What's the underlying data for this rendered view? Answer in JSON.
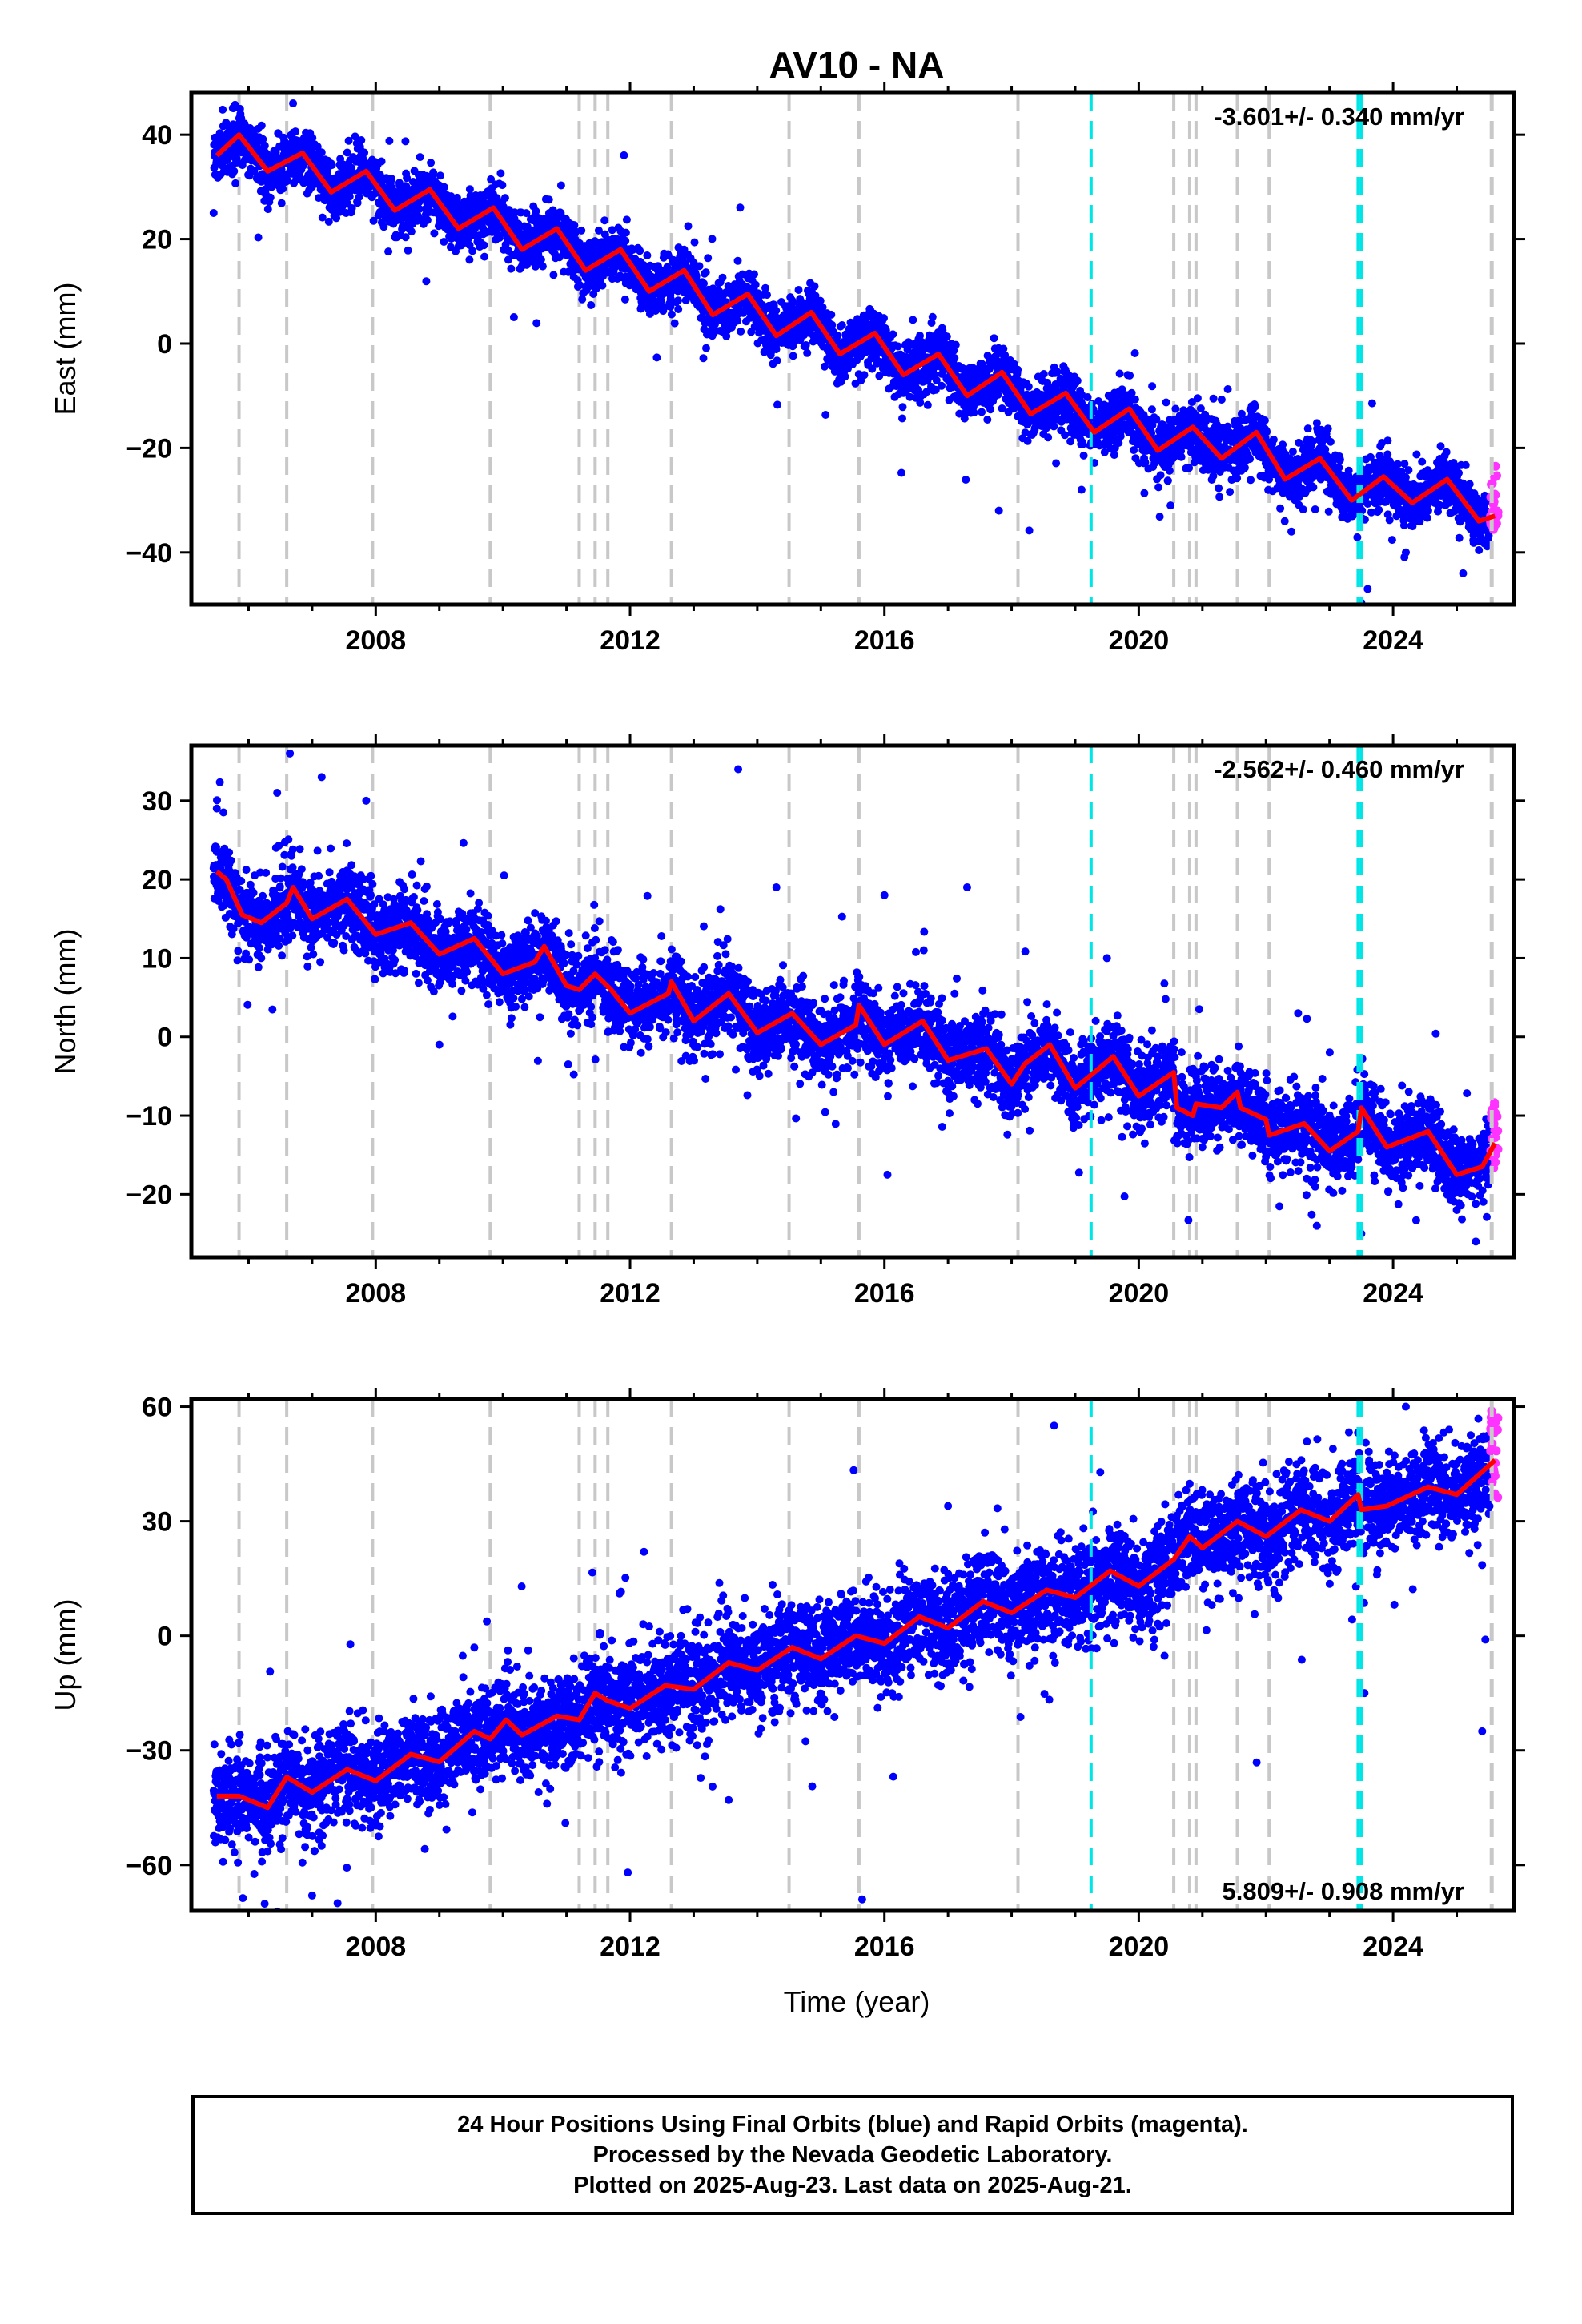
{
  "title": "AV10 - NA",
  "x_axis": {
    "label": "Time (year)",
    "range": [
      2005.1,
      2025.9
    ],
    "ticks": [
      2008,
      2012,
      2016,
      2020,
      2024
    ],
    "tick_labels": [
      "2008",
      "2012",
      "2016",
      "2020",
      "2024"
    ]
  },
  "event_lines": {
    "gray": [
      2005.85,
      2006.6,
      2007.95,
      2009.8,
      2011.2,
      2011.45,
      2011.65,
      2012.65,
      2014.5,
      2015.6,
      2018.1,
      2020.55,
      2020.8,
      2020.9,
      2021.55,
      2022.05,
      2025.55
    ],
    "cyan": [
      2019.25,
      2023.45,
      2023.5
    ],
    "gray_color": "#c8c8c8",
    "cyan_color": "#00e5e5"
  },
  "colors": {
    "final_orbits": "#0000ff",
    "rapid_orbits": "#ff33ff",
    "model": "#ff0000"
  },
  "panels": [
    {
      "key": "east",
      "ylabel": "East (mm)",
      "rate_label": "-3.601+/- 0.340 mm/yr",
      "rate_position": "top-right",
      "ylim": [
        -50,
        48
      ],
      "yticks": [
        40,
        20,
        0,
        -20,
        -40
      ],
      "ytick_labels": [
        "40",
        "20",
        "0",
        "−20",
        "−40"
      ],
      "model": {
        "start_value": 37,
        "rate": -3.601,
        "amplitude": 3.6,
        "noise": 2.6
      },
      "model_points": [
        [
          2005.5,
          36.0
        ],
        [
          2005.85,
          40.0
        ],
        [
          2006.3,
          33.0
        ],
        [
          2006.85,
          36.5
        ],
        [
          2007.3,
          29.0
        ],
        [
          2007.85,
          33.0
        ],
        [
          2008.3,
          25.5
        ],
        [
          2008.85,
          29.5
        ],
        [
          2009.3,
          22.0
        ],
        [
          2009.85,
          26.0
        ],
        [
          2010.3,
          18.0
        ],
        [
          2010.85,
          22.0
        ],
        [
          2011.3,
          14.0
        ],
        [
          2011.85,
          18.0
        ],
        [
          2012.3,
          10.0
        ],
        [
          2012.85,
          14.0
        ],
        [
          2013.3,
          5.5
        ],
        [
          2013.85,
          9.5
        ],
        [
          2014.3,
          1.5
        ],
        [
          2014.85,
          6.0
        ],
        [
          2015.3,
          -2.0
        ],
        [
          2015.85,
          2.0
        ],
        [
          2016.3,
          -6.0
        ],
        [
          2016.85,
          -2.0
        ],
        [
          2017.3,
          -10.0
        ],
        [
          2017.85,
          -5.5
        ],
        [
          2018.3,
          -13.5
        ],
        [
          2018.85,
          -9.5
        ],
        [
          2019.3,
          -17.0
        ],
        [
          2019.85,
          -12.5
        ],
        [
          2020.3,
          -20.5
        ],
        [
          2020.85,
          -16.0
        ],
        [
          2021.3,
          -22.0
        ],
        [
          2021.85,
          -17.0
        ],
        [
          2022.3,
          -26.0
        ],
        [
          2022.85,
          -22.0
        ],
        [
          2023.35,
          -30.0
        ],
        [
          2023.85,
          -25.5
        ],
        [
          2024.3,
          -30.5
        ],
        [
          2024.85,
          -26.0
        ],
        [
          2025.35,
          -34.0
        ],
        [
          2025.6,
          -33.0
        ]
      ],
      "rapid_range": [
        -36,
        -23
      ],
      "outliers": [
        [
          2005.45,
          25
        ],
        [
          2006.7,
          46
        ],
        [
          2007.25,
          35
        ],
        [
          2017.8,
          -32
        ],
        [
          2019.1,
          -28
        ],
        [
          2020.5,
          -31
        ],
        [
          2022.4,
          -36
        ],
        [
          2023.6,
          -47
        ],
        [
          2024.2,
          -40
        ],
        [
          2025.1,
          -44
        ]
      ]
    },
    {
      "key": "north",
      "ylabel": "North (mm)",
      "rate_label": "-2.562+/- 0.460 mm/yr",
      "rate_position": "top-right",
      "ylim": [
        -28,
        37
      ],
      "yticks": [
        30,
        20,
        10,
        0,
        -10,
        -20
      ],
      "ytick_labels": [
        "30",
        "20",
        "10",
        "0",
        "−10",
        "−20"
      ],
      "model": {
        "start_value": 18,
        "rate": -2.562,
        "amplitude": 2.1,
        "noise": 2.4
      },
      "model_points": [
        [
          2005.5,
          21.0
        ],
        [
          2005.65,
          20.0
        ],
        [
          2005.9,
          15.5
        ],
        [
          2006.2,
          14.5
        ],
        [
          2006.6,
          17.0
        ],
        [
          2006.7,
          19.0
        ],
        [
          2007.0,
          15.0
        ],
        [
          2007.55,
          17.5
        ],
        [
          2008.0,
          13.0
        ],
        [
          2008.55,
          14.5
        ],
        [
          2009.0,
          10.5
        ],
        [
          2009.55,
          12.5
        ],
        [
          2010.0,
          8.0
        ],
        [
          2010.5,
          9.5
        ],
        [
          2010.65,
          11.5
        ],
        [
          2011.0,
          6.5
        ],
        [
          2011.2,
          6.0
        ],
        [
          2011.45,
          8.0
        ],
        [
          2011.7,
          6.0
        ],
        [
          2012.0,
          3.0
        ],
        [
          2012.6,
          5.5
        ],
        [
          2012.65,
          7.0
        ],
        [
          2013.0,
          2.0
        ],
        [
          2013.55,
          5.5
        ],
        [
          2014.0,
          0.5
        ],
        [
          2014.55,
          3.0
        ],
        [
          2015.0,
          -1.0
        ],
        [
          2015.55,
          1.5
        ],
        [
          2015.6,
          4.0
        ],
        [
          2016.0,
          -1.0
        ],
        [
          2016.6,
          2.0
        ],
        [
          2017.0,
          -3.0
        ],
        [
          2017.6,
          -1.5
        ],
        [
          2018.0,
          -6.0
        ],
        [
          2018.2,
          -3.5
        ],
        [
          2018.6,
          -1.0
        ],
        [
          2019.0,
          -6.5
        ],
        [
          2019.3,
          -4.5
        ],
        [
          2019.6,
          -2.5
        ],
        [
          2020.0,
          -7.5
        ],
        [
          2020.55,
          -4.5
        ],
        [
          2020.6,
          -9.0
        ],
        [
          2020.85,
          -10.0
        ],
        [
          2020.9,
          -8.5
        ],
        [
          2021.3,
          -9.0
        ],
        [
          2021.55,
          -7.0
        ],
        [
          2021.6,
          -9.0
        ],
        [
          2022.0,
          -10.5
        ],
        [
          2022.05,
          -12.5
        ],
        [
          2022.6,
          -11.0
        ],
        [
          2023.0,
          -14.5
        ],
        [
          2023.45,
          -12.0
        ],
        [
          2023.5,
          -9.0
        ],
        [
          2023.9,
          -14.0
        ],
        [
          2024.55,
          -12.0
        ],
        [
          2025.0,
          -17.5
        ],
        [
          2025.4,
          -16.5
        ],
        [
          2025.6,
          -13.5
        ]
      ],
      "rapid_range": [
        -17,
        -8
      ],
      "outliers": [
        [
          2005.5,
          29
        ],
        [
          2006.45,
          31
        ],
        [
          2006.65,
          36
        ],
        [
          2007.15,
          33
        ],
        [
          2007.85,
          30
        ],
        [
          2009.0,
          -1
        ],
        [
          2013.7,
          34
        ],
        [
          2014.3,
          19
        ],
        [
          2015.2,
          -7
        ],
        [
          2016.0,
          18
        ],
        [
          2017.3,
          19
        ],
        [
          2019.5,
          10
        ],
        [
          2021.0,
          -14
        ],
        [
          2022.8,
          -24
        ],
        [
          2023.5,
          -25
        ],
        [
          2025.0,
          -22
        ],
        [
          2025.3,
          -26
        ]
      ]
    },
    {
      "key": "up",
      "ylabel": "Up (mm)",
      "rate_label": "5.809+/- 0.908 mm/yr",
      "rate_position": "bottom-right",
      "ylim": [
        -72,
        62
      ],
      "yticks": [
        60,
        30,
        0,
        -30,
        -60
      ],
      "ytick_labels": [
        "60",
        "30",
        "0",
        "−30",
        "−60"
      ],
      "model": {
        "start_value": -42,
        "rate": 5.809,
        "amplitude": 3.2,
        "noise": 6.5
      },
      "model_points": [
        [
          2005.5,
          -42.0
        ],
        [
          2005.85,
          -42.0
        ],
        [
          2006.3,
          -45.0
        ],
        [
          2006.6,
          -37.0
        ],
        [
          2007.0,
          -41.0
        ],
        [
          2007.55,
          -35.0
        ],
        [
          2008.0,
          -38.0
        ],
        [
          2008.55,
          -31.0
        ],
        [
          2009.0,
          -33.0
        ],
        [
          2009.55,
          -25.0
        ],
        [
          2009.8,
          -27.0
        ],
        [
          2010.05,
          -22.0
        ],
        [
          2010.3,
          -26.0
        ],
        [
          2010.85,
          -21.0
        ],
        [
          2011.2,
          -22.0
        ],
        [
          2011.45,
          -15.0
        ],
        [
          2011.65,
          -17.0
        ],
        [
          2012.0,
          -19.0
        ],
        [
          2012.55,
          -13.0
        ],
        [
          2013.0,
          -14.0
        ],
        [
          2013.55,
          -7.0
        ],
        [
          2014.0,
          -9.0
        ],
        [
          2014.55,
          -3.0
        ],
        [
          2015.0,
          -6.0
        ],
        [
          2015.55,
          0.0
        ],
        [
          2016.0,
          -2.0
        ],
        [
          2016.55,
          5.0
        ],
        [
          2017.0,
          2.0
        ],
        [
          2017.55,
          9.0
        ],
        [
          2018.0,
          6.0
        ],
        [
          2018.55,
          12.0
        ],
        [
          2019.0,
          10.0
        ],
        [
          2019.55,
          17.0
        ],
        [
          2020.0,
          13.0
        ],
        [
          2020.55,
          20.0
        ],
        [
          2020.8,
          26.0
        ],
        [
          2021.0,
          23.0
        ],
        [
          2021.55,
          30.0
        ],
        [
          2022.0,
          26.0
        ],
        [
          2022.55,
          33.0
        ],
        [
          2023.0,
          30.0
        ],
        [
          2023.45,
          37.0
        ],
        [
          2023.5,
          33.0
        ],
        [
          2023.9,
          34.0
        ],
        [
          2024.55,
          39.0
        ],
        [
          2025.0,
          37.0
        ],
        [
          2025.4,
          43.0
        ],
        [
          2025.6,
          46.0
        ]
      ],
      "rapid_range": [
        36,
        60
      ],
      "outliers": [
        [
          2007.0,
          -68
        ],
        [
          2007.4,
          -70
        ],
        [
          2013.55,
          -43
        ],
        [
          2015.65,
          -69
        ],
        [
          2017.0,
          34
        ],
        [
          2023.55,
          -15
        ],
        [
          2025.4,
          -25
        ],
        [
          2025.45,
          -1
        ],
        [
          2024.2,
          60
        ]
      ]
    }
  ],
  "caption": {
    "lines": [
      "24 Hour Positions Using Final Orbits (blue) and Rapid Orbits (magenta).",
      "Processed by the Nevada Geodetic Laboratory.",
      "Plotted on 2025-Aug-23. Last data on 2025-Aug-21."
    ]
  },
  "chart_data": [
    {
      "type": "scatter",
      "title": "AV10 - NA",
      "xlabel": "",
      "ylabel": "East (mm)",
      "xlim": [
        2005.1,
        2025.9
      ],
      "ylim": [
        -50,
        48
      ],
      "series": [
        {
          "name": "Final Orbits (blue)",
          "values_trend": [
            [
              2005.5,
              36
            ],
            [
              2010,
              20
            ],
            [
              2015,
              2
            ],
            [
              2020,
              -16
            ],
            [
              2025.6,
              -33
            ]
          ]
        },
        {
          "name": "Rapid Orbits (magenta)",
          "values_range": [
            [
              2025.55,
              -36
            ],
            [
              2025.65,
              -23
            ]
          ]
        }
      ],
      "annotation": "-3.601+/- 0.340 mm/yr"
    },
    {
      "type": "scatter",
      "xlabel": "",
      "ylabel": "North (mm)",
      "xlim": [
        2005.1,
        2025.9
      ],
      "ylim": [
        -28,
        37
      ],
      "series": [
        {
          "name": "Final Orbits (blue)",
          "values_trend": [
            [
              2005.5,
              21
            ],
            [
              2010,
              8
            ],
            [
              2015,
              -1
            ],
            [
              2020,
              -7.5
            ],
            [
              2025.6,
              -13.5
            ]
          ]
        },
        {
          "name": "Rapid Orbits (magenta)",
          "values_range": [
            [
              2025.55,
              -17
            ],
            [
              2025.65,
              -8
            ]
          ]
        }
      ],
      "annotation": "-2.562+/- 0.460 mm/yr"
    },
    {
      "type": "scatter",
      "xlabel": "Time (year)",
      "ylabel": "Up (mm)",
      "xlim": [
        2005.1,
        2025.9
      ],
      "ylim": [
        -72,
        62
      ],
      "series": [
        {
          "name": "Final Orbits (blue)",
          "values_trend": [
            [
              2005.5,
              -42
            ],
            [
              2010,
              -22
            ],
            [
              2015,
              -6
            ],
            [
              2020,
              13
            ],
            [
              2025.6,
              46
            ]
          ]
        },
        {
          "name": "Rapid Orbits (magenta)",
          "values_range": [
            [
              2025.55,
              36
            ],
            [
              2025.65,
              60
            ]
          ]
        }
      ],
      "annotation": "5.809+/- 0.908 mm/yr"
    }
  ]
}
